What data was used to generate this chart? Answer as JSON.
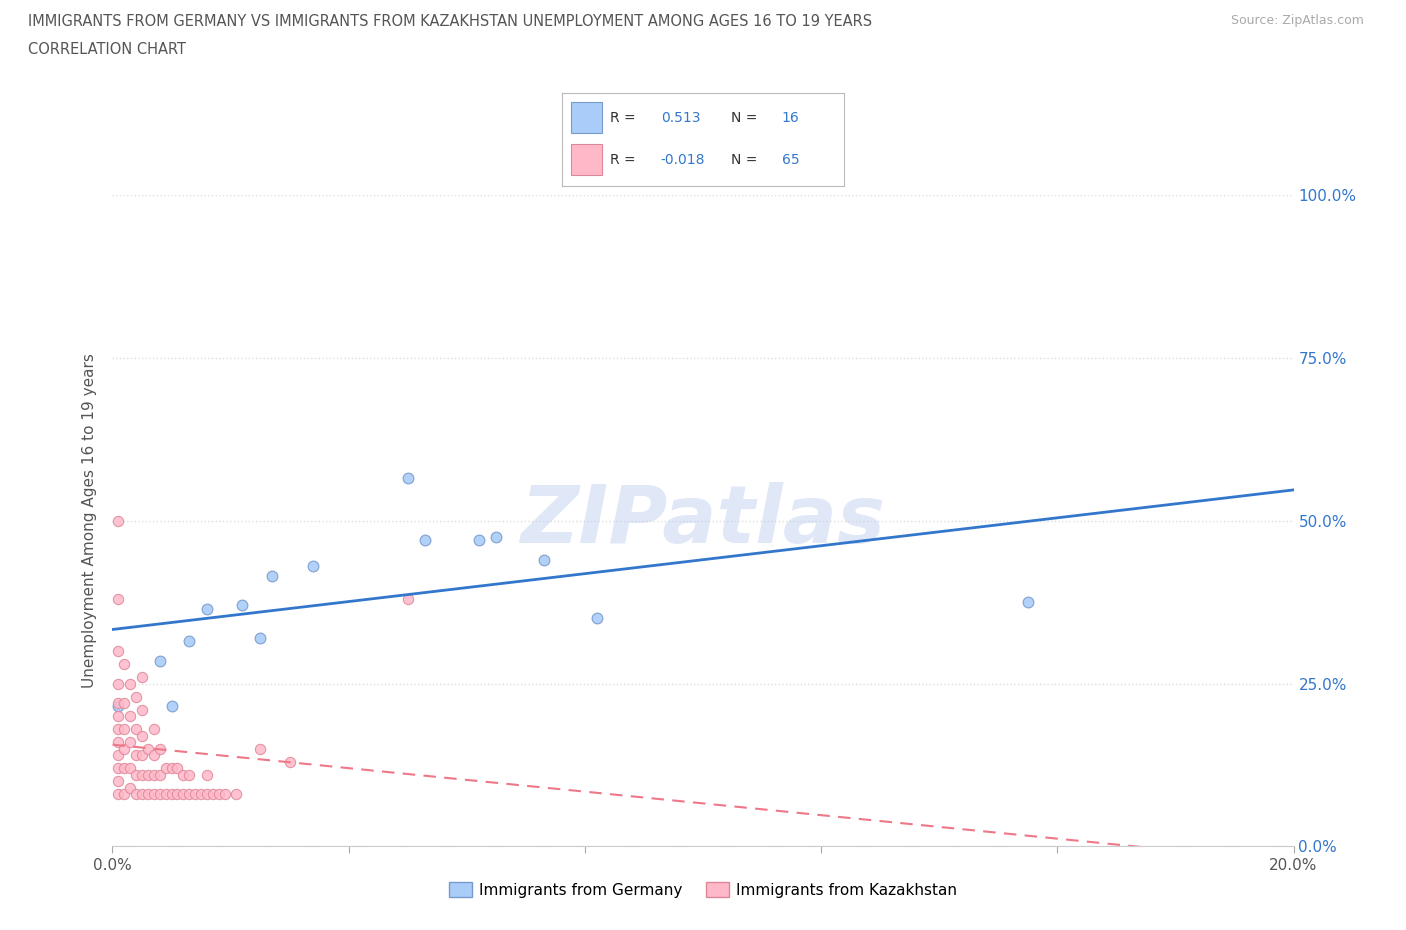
{
  "title_line1": "IMMIGRANTS FROM GERMANY VS IMMIGRANTS FROM KAZAKHSTAN UNEMPLOYMENT AMONG AGES 16 TO 19 YEARS",
  "title_line2": "CORRELATION CHART",
  "source": "Source: ZipAtlas.com",
  "ylabel": "Unemployment Among Ages 16 to 19 years",
  "xlim": [
    0.0,
    0.2
  ],
  "ylim": [
    0.0,
    1.0
  ],
  "xticks": [
    0.0,
    0.04,
    0.08,
    0.12,
    0.16,
    0.2
  ],
  "xtick_labels": [
    "0.0%",
    "",
    "",
    "",
    "",
    "20.0%"
  ],
  "ytick_labels_right": [
    "0.0%",
    "25.0%",
    "50.0%",
    "75.0%",
    "100.0%"
  ],
  "yticks_right": [
    0.0,
    0.25,
    0.5,
    0.75,
    1.0
  ],
  "germany_color": "#aaccf8",
  "germany_edge": "#7799cc",
  "kazakhstan_color": "#ffb8c8",
  "kazakhstan_edge": "#dd8899",
  "germany_line_color": "#3377cc",
  "kazakhstan_line_color": "#ee7788",
  "legend_R_germany": "0.513",
  "legend_N_germany": "16",
  "legend_R_kazakhstan": "-0.018",
  "legend_N_kazakhstan": "65",
  "germany_x": [
    0.001,
    0.008,
    0.01,
    0.013,
    0.016,
    0.022,
    0.025,
    0.027,
    0.034,
    0.05,
    0.053,
    0.062,
    0.065,
    0.073,
    0.082,
    0.155
  ],
  "germany_y": [
    0.215,
    0.285,
    0.215,
    0.315,
    0.365,
    0.37,
    0.32,
    0.415,
    0.43,
    0.565,
    0.47,
    0.47,
    0.475,
    0.44,
    0.35,
    0.375
  ],
  "kazakhstan_x": [
    0.001,
    0.001,
    0.001,
    0.001,
    0.001,
    0.001,
    0.001,
    0.001,
    0.001,
    0.001,
    0.001,
    0.002,
    0.002,
    0.002,
    0.002,
    0.002,
    0.002,
    0.003,
    0.003,
    0.003,
    0.003,
    0.003,
    0.004,
    0.004,
    0.004,
    0.004,
    0.004,
    0.005,
    0.005,
    0.005,
    0.005,
    0.005,
    0.005,
    0.006,
    0.006,
    0.006,
    0.007,
    0.007,
    0.007,
    0.007,
    0.008,
    0.008,
    0.008,
    0.009,
    0.009,
    0.01,
    0.01,
    0.011,
    0.011,
    0.012,
    0.012,
    0.013,
    0.013,
    0.014,
    0.015,
    0.016,
    0.016,
    0.017,
    0.018,
    0.019,
    0.021,
    0.025,
    0.03,
    0.05,
    0.001
  ],
  "kazakhstan_y": [
    0.08,
    0.1,
    0.12,
    0.14,
    0.16,
    0.18,
    0.2,
    0.22,
    0.25,
    0.3,
    0.38,
    0.08,
    0.12,
    0.15,
    0.18,
    0.22,
    0.28,
    0.09,
    0.12,
    0.16,
    0.2,
    0.25,
    0.08,
    0.11,
    0.14,
    0.18,
    0.23,
    0.08,
    0.11,
    0.14,
    0.17,
    0.21,
    0.26,
    0.08,
    0.11,
    0.15,
    0.08,
    0.11,
    0.14,
    0.18,
    0.08,
    0.11,
    0.15,
    0.08,
    0.12,
    0.08,
    0.12,
    0.08,
    0.12,
    0.08,
    0.11,
    0.08,
    0.11,
    0.08,
    0.08,
    0.08,
    0.11,
    0.08,
    0.08,
    0.08,
    0.08,
    0.15,
    0.13,
    0.38,
    0.5
  ],
  "background_color": "#ffffff",
  "grid_color": "#dddddd",
  "watermark": "ZIPatlas",
  "marker_size_germany": 60,
  "marker_size_kazakhstan": 55
}
